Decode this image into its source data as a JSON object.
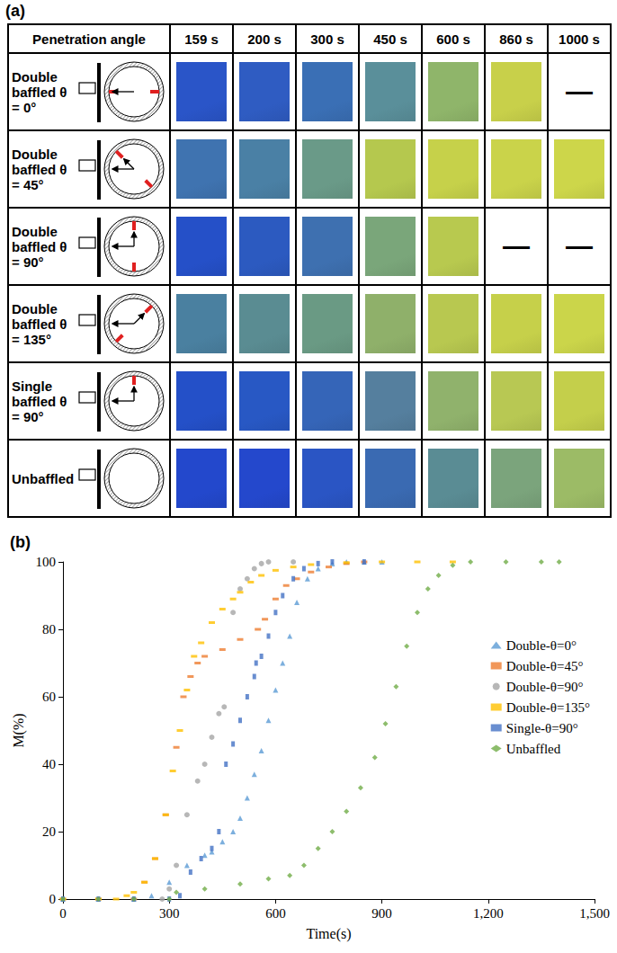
{
  "panel_a": {
    "letter": "(a)",
    "header": [
      "Penetration angle",
      "159 s",
      "200 s",
      "300 s",
      "450 s",
      "600 s",
      "860 s",
      "1000 s"
    ],
    "rows": [
      {
        "label": "Double baffled θ = 0°",
        "baffles": 2,
        "angle": 0,
        "cells": [
          {
            "color": "#2a55c8"
          },
          {
            "color": "#2f5cc2"
          },
          {
            "color": "#3a6fb5"
          },
          {
            "color": "#5a8f9a"
          },
          {
            "color": "#8fb56a"
          },
          {
            "color": "#c8d04a"
          },
          {
            "text": "—"
          }
        ]
      },
      {
        "label": "Double baffled θ = 45°",
        "baffles": 2,
        "angle": 45,
        "cells": [
          {
            "color": "#3f73b0"
          },
          {
            "color": "#4a80a5"
          },
          {
            "color": "#6a9a88"
          },
          {
            "color": "#b5c84e"
          },
          {
            "color": "#c6d14a"
          },
          {
            "color": "#cad34a"
          },
          {
            "color": "#cdd64a"
          }
        ]
      },
      {
        "label": "Double baffled θ = 90°",
        "baffles": 2,
        "angle": 90,
        "cells": [
          {
            "color": "#2550c8"
          },
          {
            "color": "#2c5ac0"
          },
          {
            "color": "#3e70b0"
          },
          {
            "color": "#7aa67a"
          },
          {
            "color": "#b8c94f"
          },
          {
            "text": "—"
          },
          {
            "text": "—"
          }
        ]
      },
      {
        "label": "Double baffled θ = 135°",
        "baffles": 2,
        "angle": 135,
        "cells": [
          {
            "color": "#4a80a0"
          },
          {
            "color": "#5a8c92"
          },
          {
            "color": "#6a9a84"
          },
          {
            "color": "#8fb06a"
          },
          {
            "color": "#b8c850"
          },
          {
            "color": "#c6d04a"
          },
          {
            "color": "#cbd54a"
          }
        ]
      },
      {
        "label": "Single baffled θ = 90°",
        "baffles": 1,
        "angle": 90,
        "cells": [
          {
            "color": "#2450c8"
          },
          {
            "color": "#2858c4"
          },
          {
            "color": "#3565b8"
          },
          {
            "color": "#557f9e"
          },
          {
            "color": "#90b26c"
          },
          {
            "color": "#b8c853"
          },
          {
            "color": "#c4cf4b"
          }
        ]
      },
      {
        "label": "Unbaffled",
        "baffles": 0,
        "cells": [
          {
            "color": "#2348cc"
          },
          {
            "color": "#2448cc"
          },
          {
            "color": "#2a55c4"
          },
          {
            "color": "#3a6ab2"
          },
          {
            "color": "#5a8c94"
          },
          {
            "color": "#7ba47c"
          },
          {
            "color": "#9cbb66"
          }
        ]
      }
    ]
  },
  "chart_data": {
    "type": "scatter",
    "title": "(b)",
    "x_label": "Time(s)",
    "y_label": "M(%)",
    "xlim": [
      0,
      1500
    ],
    "xticks": [
      0,
      300,
      600,
      900,
      1200,
      1500
    ],
    "ylim": [
      0,
      100
    ],
    "yticks": [
      0,
      20,
      40,
      60,
      80,
      100
    ],
    "grid": false,
    "legend": "right",
    "series": [
      {
        "name": "Double-θ=0°",
        "color": "#5b9bd5",
        "marker": "triangle",
        "x": [
          0,
          100,
          200,
          250,
          300,
          350,
          400,
          420,
          450,
          480,
          500,
          520,
          540,
          560,
          580,
          600,
          620,
          640,
          660,
          690,
          720,
          760,
          800,
          850,
          900
        ],
        "values": [
          0,
          0,
          0,
          1,
          5,
          10,
          13,
          14,
          17,
          20,
          24,
          30,
          37,
          44,
          53,
          62,
          70,
          78,
          88,
          95,
          98,
          99.5,
          100,
          100,
          100
        ]
      },
      {
        "name": "Double-θ=45°",
        "color": "#ed7d31",
        "marker": "dash",
        "x": [
          0,
          100,
          200,
          230,
          260,
          290,
          320,
          340,
          360,
          380,
          400,
          450,
          500,
          550,
          570,
          600,
          630,
          660,
          700,
          750,
          800,
          850
        ],
        "values": [
          0,
          0,
          0,
          5,
          12,
          25,
          45,
          60,
          66,
          70,
          72,
          74,
          77,
          80,
          83,
          89,
          93,
          95,
          97,
          98.5,
          99.5,
          100
        ]
      },
      {
        "name": "Double-θ=90°",
        "color": "#a5a5a5",
        "marker": "circle",
        "x": [
          0,
          100,
          200,
          280,
          300,
          320,
          350,
          380,
          400,
          420,
          440,
          455,
          480,
          500,
          520,
          540,
          560,
          580,
          650
        ],
        "values": [
          0,
          0,
          0,
          0,
          3,
          10,
          25,
          35,
          40,
          48,
          55,
          57,
          85,
          92,
          95,
          98,
          99.5,
          100,
          100
        ]
      },
      {
        "name": "Double-θ=135°",
        "color": "#ffc000",
        "marker": "dash",
        "x": [
          0,
          100,
          150,
          180,
          200,
          230,
          260,
          290,
          310,
          330,
          350,
          370,
          390,
          420,
          450,
          480,
          500,
          530,
          560,
          600,
          650,
          700,
          800,
          900,
          1000,
          1100
        ],
        "values": [
          0,
          0,
          0,
          1,
          2,
          5,
          12,
          25,
          38,
          50,
          62,
          72,
          76,
          82,
          86,
          89,
          91,
          94,
          96,
          97.5,
          98.5,
          99.2,
          99.8,
          100,
          100,
          100
        ]
      },
      {
        "name": "Single-θ=90°",
        "color": "#4472c4",
        "marker": "rect",
        "x": [
          0,
          100,
          200,
          300,
          330,
          360,
          390,
          420,
          440,
          460,
          480,
          500,
          520,
          540,
          545,
          560,
          580,
          600,
          620,
          650,
          680,
          720,
          760,
          850
        ],
        "values": [
          0,
          0,
          0,
          0,
          1,
          8,
          12,
          15,
          20,
          40,
          46,
          53,
          60,
          66,
          70,
          72,
          78,
          85,
          90,
          95,
          98,
          99.5,
          100,
          100
        ]
      },
      {
        "name": "Unbaffled",
        "color": "#70ad47",
        "marker": "diamond",
        "x": [
          0,
          100,
          200,
          300,
          320,
          400,
          500,
          580,
          640,
          680,
          720,
          760,
          800,
          840,
          880,
          910,
          940,
          970,
          1000,
          1030,
          1060,
          1100,
          1150,
          1250,
          1350,
          1400
        ],
        "values": [
          0,
          0,
          0,
          0,
          2,
          3,
          4.5,
          6,
          7,
          10,
          15,
          20,
          26,
          33,
          42,
          52,
          63,
          75,
          85,
          92,
          96,
          99,
          100,
          100,
          100,
          100
        ]
      }
    ]
  }
}
